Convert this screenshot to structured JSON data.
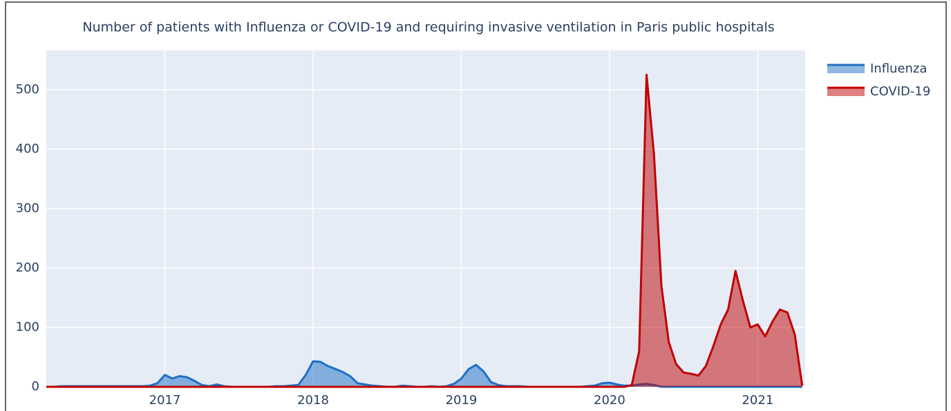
{
  "chart_data": {
    "type": "area",
    "title": "Number of patients with Influenza or COVID-19 and requiring invasive ventilation in Paris public hospitals",
    "x": [
      2016.2,
      2016.25,
      2016.3,
      2016.35,
      2016.4,
      2016.45,
      2016.5,
      2016.55,
      2016.6,
      2016.65,
      2016.7,
      2016.75,
      2016.8,
      2016.85,
      2016.9,
      2016.95,
      2017,
      2017.05,
      2017.1,
      2017.15,
      2017.2,
      2017.25,
      2017.3,
      2017.35,
      2017.4,
      2017.45,
      2017.5,
      2017.55,
      2017.6,
      2017.65,
      2017.7,
      2017.75,
      2017.8,
      2017.85,
      2017.9,
      2017.95,
      2018,
      2018.05,
      2018.1,
      2018.15,
      2018.2,
      2018.25,
      2018.3,
      2018.35,
      2018.4,
      2018.45,
      2018.5,
      2018.55,
      2018.6,
      2018.65,
      2018.7,
      2018.75,
      2018.8,
      2018.85,
      2018.9,
      2018.95,
      2019,
      2019.05,
      2019.1,
      2019.15,
      2019.2,
      2019.25,
      2019.3,
      2019.35,
      2019.4,
      2019.45,
      2019.5,
      2019.55,
      2019.6,
      2019.65,
      2019.7,
      2019.75,
      2019.8,
      2019.85,
      2019.9,
      2019.95,
      2020,
      2020.05,
      2020.1,
      2020.15,
      2020.2,
      2020.25,
      2020.3,
      2020.35,
      2020.4,
      2020.45,
      2020.5,
      2020.55,
      2020.6,
      2020.65,
      2020.7,
      2020.75,
      2020.8,
      2020.85,
      2020.9,
      2020.95,
      2021,
      2021.05,
      2021.1,
      2021.15,
      2021.2,
      2021.25,
      2021.3
    ],
    "series": [
      {
        "name": "Influenza",
        "color": "#1f6fc4",
        "values": [
          0,
          0,
          1,
          1,
          1,
          1,
          1,
          1,
          1,
          1,
          1,
          1,
          1,
          1,
          2,
          6,
          20,
          14,
          18,
          16,
          10,
          3,
          1,
          4,
          1,
          0,
          0,
          0,
          0,
          0,
          0,
          1,
          1,
          2,
          3,
          20,
          43,
          42,
          35,
          30,
          25,
          18,
          6,
          4,
          2,
          1,
          0,
          0,
          2,
          1,
          0,
          0,
          1,
          0,
          1,
          5,
          14,
          30,
          37,
          26,
          8,
          3,
          1,
          1,
          1,
          0,
          0,
          0,
          0,
          0,
          0,
          0,
          0,
          1,
          2,
          6,
          7,
          4,
          2,
          2,
          4,
          5,
          3,
          0,
          0,
          0,
          0,
          0,
          0,
          0,
          0,
          0,
          0,
          0,
          0,
          0,
          0,
          0,
          0,
          0,
          0,
          0,
          0
        ]
      },
      {
        "name": "COVID-19",
        "color": "#c00000",
        "values": [
          0,
          0,
          0,
          0,
          0,
          0,
          0,
          0,
          0,
          0,
          0,
          0,
          0,
          0,
          0,
          0,
          0,
          0,
          0,
          0,
          0,
          0,
          0,
          0,
          0,
          0,
          0,
          0,
          0,
          0,
          0,
          0,
          0,
          0,
          0,
          0,
          0,
          0,
          0,
          0,
          0,
          0,
          0,
          0,
          0,
          0,
          0,
          0,
          0,
          0,
          0,
          0,
          0,
          0,
          0,
          0,
          0,
          0,
          0,
          0,
          0,
          0,
          0,
          0,
          0,
          0,
          0,
          0,
          0,
          0,
          0,
          0,
          0,
          0,
          0,
          0,
          0,
          0,
          0,
          3,
          60,
          525,
          390,
          170,
          75,
          38,
          24,
          22,
          19,
          35,
          68,
          105,
          130,
          195,
          145,
          100,
          105,
          85,
          110,
          130,
          125,
          88,
          2
        ]
      }
    ],
    "xlim": [
      2016.2,
      2021.32
    ],
    "xticks": [
      2017,
      2018,
      2019,
      2020,
      2021
    ],
    "ylim": [
      0,
      566
    ],
    "yticks": [
      0,
      100,
      200,
      300,
      400,
      500
    ],
    "grid": true,
    "legend": "right"
  }
}
